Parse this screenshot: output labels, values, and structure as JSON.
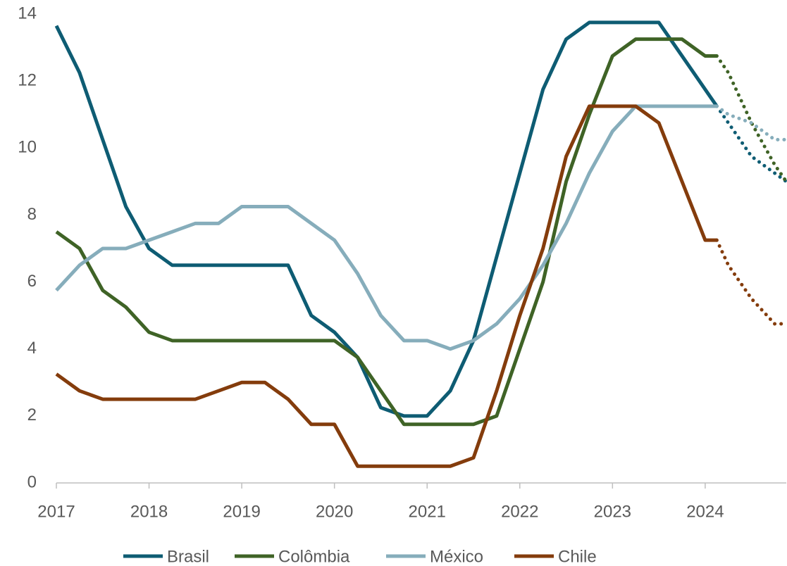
{
  "chart_data": {
    "type": "line",
    "x": [
      2017,
      2017.25,
      2017.5,
      2017.75,
      2018,
      2018.25,
      2018.5,
      2018.75,
      2019,
      2019.25,
      2019.5,
      2019.75,
      2020,
      2020.25,
      2020.5,
      2020.75,
      2021,
      2021.25,
      2021.5,
      2021.75,
      2022,
      2022.25,
      2022.5,
      2022.75,
      2023,
      2023.25,
      2023.5,
      2023.75,
      2024,
      2024.125,
      2024.25,
      2024.5,
      2024.75,
      2024.875
    ],
    "series": [
      {
        "name": "Brasil",
        "color": "#0e5c73",
        "values": [
          13.65,
          12.25,
          10.25,
          8.25,
          7.0,
          6.5,
          6.5,
          6.5,
          6.5,
          6.5,
          6.5,
          5.0,
          4.5,
          3.75,
          2.25,
          2.0,
          2.0,
          2.75,
          4.25,
          6.75,
          9.25,
          11.75,
          13.25,
          13.75,
          13.75,
          13.75,
          13.75,
          12.75,
          11.75,
          11.25,
          null,
          null,
          null,
          null
        ],
        "forecast_values": [
          null,
          null,
          null,
          null,
          null,
          null,
          null,
          null,
          null,
          null,
          null,
          null,
          null,
          null,
          null,
          null,
          null,
          null,
          null,
          null,
          null,
          null,
          null,
          null,
          null,
          null,
          null,
          null,
          null,
          11.25,
          10.75,
          9.75,
          9.25,
          9.0
        ]
      },
      {
        "name": "Colômbia",
        "color": "#3f6326",
        "values": [
          7.5,
          7.0,
          5.75,
          5.25,
          4.5,
          4.25,
          4.25,
          4.25,
          4.25,
          4.25,
          4.25,
          4.25,
          4.25,
          3.75,
          2.75,
          1.75,
          1.75,
          1.75,
          1.75,
          2.0,
          4.0,
          6.0,
          9.0,
          11.0,
          12.75,
          13.25,
          13.25,
          13.25,
          12.75,
          12.75,
          null,
          null,
          null,
          null
        ],
        "forecast_values": [
          null,
          null,
          null,
          null,
          null,
          null,
          null,
          null,
          null,
          null,
          null,
          null,
          null,
          null,
          null,
          null,
          null,
          null,
          null,
          null,
          null,
          null,
          null,
          null,
          null,
          null,
          null,
          null,
          null,
          12.75,
          12.25,
          10.75,
          9.5,
          9.0
        ]
      },
      {
        "name": "México",
        "color": "#86adbb",
        "values": [
          5.75,
          6.5,
          7.0,
          7.0,
          7.25,
          7.5,
          7.75,
          7.75,
          8.25,
          8.25,
          8.25,
          7.75,
          7.25,
          6.25,
          5.0,
          4.25,
          4.25,
          4.0,
          4.25,
          4.75,
          5.5,
          6.5,
          7.75,
          9.25,
          10.5,
          11.25,
          11.25,
          11.25,
          11.25,
          11.25,
          null,
          null,
          null,
          null
        ],
        "forecast_values": [
          null,
          null,
          null,
          null,
          null,
          null,
          null,
          null,
          null,
          null,
          null,
          null,
          null,
          null,
          null,
          null,
          null,
          null,
          null,
          null,
          null,
          null,
          null,
          null,
          null,
          null,
          null,
          null,
          null,
          11.25,
          11.0,
          10.75,
          10.25,
          10.25
        ]
      },
      {
        "name": "Chile",
        "color": "#843c0c",
        "values": [
          3.25,
          2.75,
          2.5,
          2.5,
          2.5,
          2.5,
          2.5,
          2.75,
          3.0,
          3.0,
          2.5,
          1.75,
          1.75,
          0.5,
          0.5,
          0.5,
          0.5,
          0.5,
          0.75,
          2.75,
          5.0,
          7.0,
          9.75,
          11.25,
          11.25,
          11.25,
          10.75,
          9.0,
          7.25,
          7.25,
          null,
          null,
          null,
          null
        ],
        "forecast_values": [
          null,
          null,
          null,
          null,
          null,
          null,
          null,
          null,
          null,
          null,
          null,
          null,
          null,
          null,
          null,
          null,
          null,
          null,
          null,
          null,
          null,
          null,
          null,
          null,
          null,
          null,
          null,
          null,
          null,
          7.25,
          6.5,
          5.5,
          4.75,
          4.75
        ]
      }
    ],
    "xlim": [
      2017,
      2024.875
    ],
    "xticks": [
      2017,
      2018,
      2019,
      2020,
      2021,
      2022,
      2023,
      2024
    ],
    "ylim": [
      0,
      14
    ],
    "yticks": [
      0,
      2,
      4,
      6,
      8,
      10,
      12,
      14
    ],
    "grid": false,
    "legend": "bottom"
  }
}
